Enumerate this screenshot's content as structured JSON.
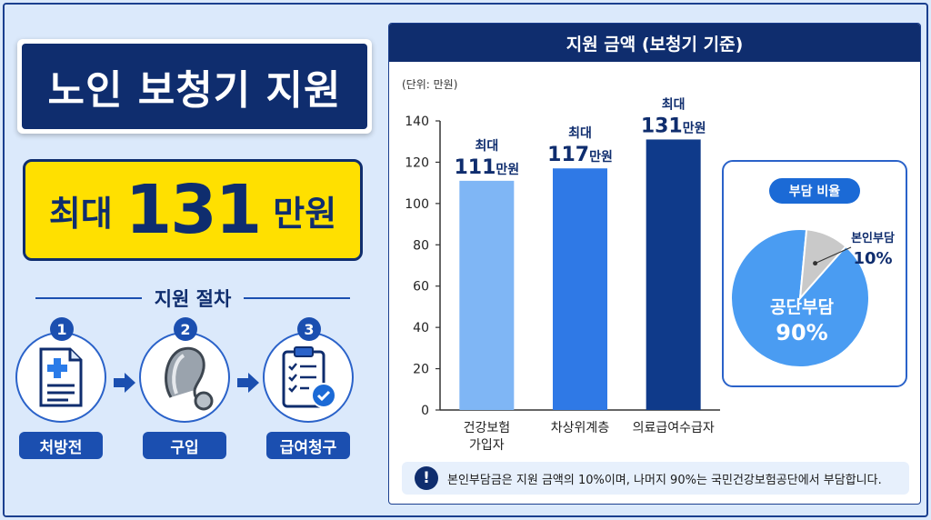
{
  "left": {
    "title": "노인 보청기 지원",
    "amount_prefix": "최대",
    "amount_number": "131",
    "amount_unit": "만원",
    "process_title": "지원 절차",
    "steps": [
      {
        "num": "1",
        "label": "처방전",
        "icon": "prescription-document-icon"
      },
      {
        "num": "2",
        "label": "구입",
        "icon": "hearing-aid-icon"
      },
      {
        "num": "3",
        "label": "급여청구",
        "icon": "clipboard-check-icon"
      }
    ]
  },
  "right": {
    "header": "지원 금액 (보청기 기준)",
    "unit": "(단위: 만원)",
    "note": "본인부담금은 지원 금액의 10%이며, 나머지 90%는 국민건강보험공단에서 부담합니다.",
    "pie_title": "부담 비율"
  },
  "chart_data": [
    {
      "type": "bar",
      "categories": [
        "건강보험\n가입자",
        "차상위계층",
        "의료급여수급자"
      ],
      "values": [
        111,
        117,
        131
      ],
      "data_labels": [
        {
          "prefix": "최대",
          "number": "111",
          "unit": "만원"
        },
        {
          "prefix": "최대",
          "number": "117",
          "unit": "만원"
        },
        {
          "prefix": "최대",
          "number": "131",
          "unit": "만원"
        }
      ],
      "yticks": [
        0,
        20,
        40,
        60,
        80,
        100,
        120,
        140
      ],
      "ylim": [
        0,
        140
      ],
      "colors": [
        "#7fb6f5",
        "#2f79e6",
        "#0f3a8a"
      ]
    },
    {
      "type": "pie",
      "slices": [
        {
          "label": "공단부담",
          "value": 90,
          "display": "90%",
          "color": "#4a9cf2"
        },
        {
          "label": "본인부담",
          "value": 10,
          "display": "10%",
          "color": "#c9c9c9"
        }
      ]
    }
  ]
}
